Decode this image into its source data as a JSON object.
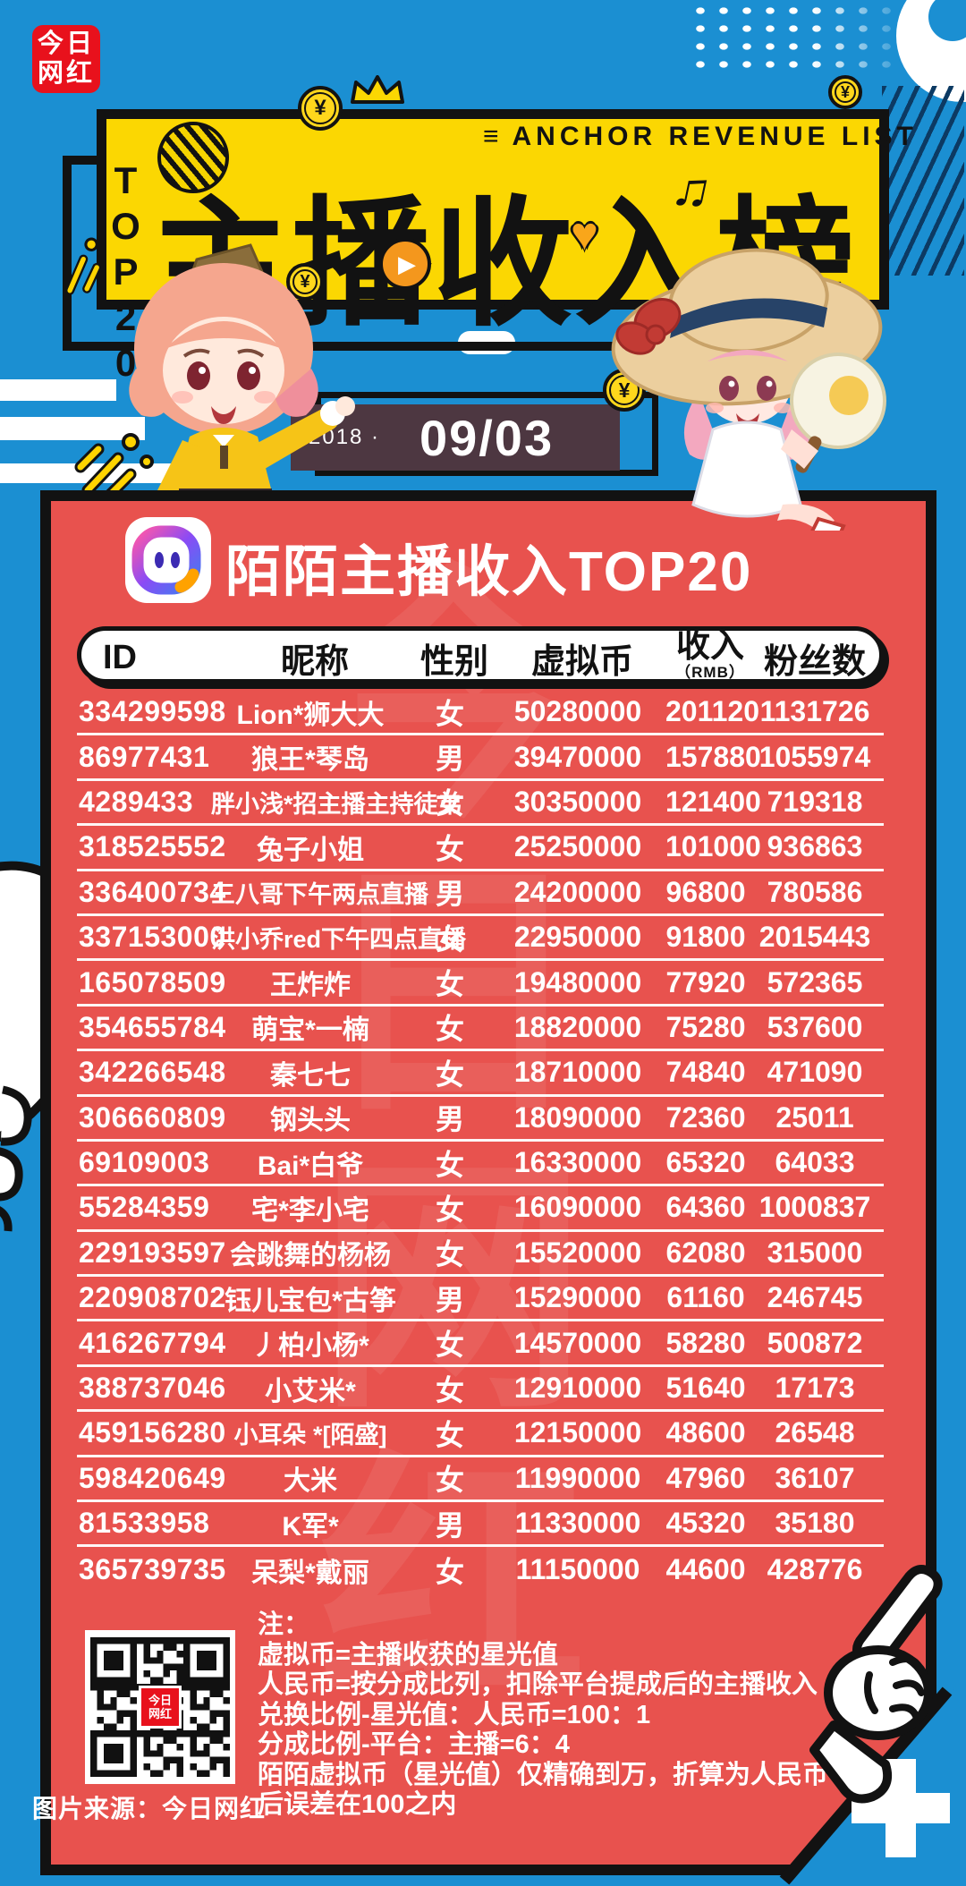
{
  "colors": {
    "background": "#1b8fd2",
    "panel": "#e8524e",
    "banner": "#fbd702",
    "date_box": "#4d3741",
    "logo_red": "#e8111c",
    "coin_yellow": "#ffd71c"
  },
  "logo": {
    "line1": "今日",
    "line2": "网红"
  },
  "banner": {
    "menu_icon": "≡",
    "subtitle": "ANCHOR REVENUE LIST",
    "top20": "TOP20",
    "title": "主播收入榜",
    "play_icon": "▶",
    "heart_icon": "♥",
    "music_icon": "♫",
    "coin_symbol": "¥"
  },
  "date": {
    "year": "2018 ·",
    "value": "09/03"
  },
  "list_header": {
    "title": "陌陌主播收入TOP20"
  },
  "table": {
    "columns": [
      "ID",
      "昵称",
      "性别",
      "虚拟币",
      "收入",
      "粉丝数"
    ],
    "income_sub": "（RMB）",
    "rows": [
      [
        "334299598",
        "Lion*狮大大",
        "女",
        "50280000",
        "201120",
        "1131726"
      ],
      [
        "86977431",
        "狼王*琴岛",
        "男",
        "39470000",
        "157880",
        "1055974"
      ],
      [
        "4289433",
        "胖小浅*招主播主持徒弟",
        "女",
        "30350000",
        "121400",
        "719318"
      ],
      [
        "318525552",
        "兔子小姐",
        "女",
        "25250000",
        "101000",
        "936863"
      ],
      [
        "336400734",
        "三八哥下午两点直播",
        "男",
        "24200000",
        "96800",
        "780586"
      ],
      [
        "337153000",
        "洪小乔red下午四点直播",
        "女",
        "22950000",
        "91800",
        "2015443"
      ],
      [
        "165078509",
        "王炸炸",
        "女",
        "19480000",
        "77920",
        "572365"
      ],
      [
        "354655784",
        "萌宝*一楠",
        "女",
        "18820000",
        "75280",
        "537600"
      ],
      [
        "342266548",
        "秦七七",
        "女",
        "18710000",
        "74840",
        "471090"
      ],
      [
        "306660809",
        "钢头头",
        "男",
        "18090000",
        "72360",
        "25011"
      ],
      [
        "69109003",
        "Bai*白爷",
        "女",
        "16330000",
        "65320",
        "64033"
      ],
      [
        "55284359",
        "宅*李小宅",
        "女",
        "16090000",
        "64360",
        "1000837"
      ],
      [
        "229193597",
        "会跳舞的杨杨",
        "女",
        "15520000",
        "62080",
        "315000"
      ],
      [
        "220908702",
        "钰儿宝包*古筝",
        "男",
        "15290000",
        "61160",
        "246745"
      ],
      [
        "416267794",
        "丿柏小杨*",
        "女",
        "14570000",
        "58280",
        "500872"
      ],
      [
        "388737046",
        "小艾米*",
        "女",
        "12910000",
        "51640",
        "17173"
      ],
      [
        "459156280",
        "小耳朵 *[陌盛]",
        "女",
        "12150000",
        "48600",
        "26548"
      ],
      [
        "598420649",
        "大米",
        "女",
        "11990000",
        "47960",
        "36107"
      ],
      [
        "81533958",
        "K军*",
        "男",
        "11330000",
        "45320",
        "35180"
      ],
      [
        "365739735",
        "呆梨*戴丽",
        "女",
        "11150000",
        "44600",
        "428776"
      ]
    ]
  },
  "notes": {
    "title": "注：",
    "lines": [
      "虚拟币=主播收获的星光值",
      "人民币=按分成比列，扣除平台提成后的主播收入",
      "兑换比例-星光值：人民币=100：1",
      "分成比例-平台：主播=6：4",
      "陌陌虚拟币（星光值）仅精确到万，折算为人民币",
      "后误差在100之内"
    ]
  },
  "watermark": "今日网红",
  "source": "图片来源：今日网红"
}
